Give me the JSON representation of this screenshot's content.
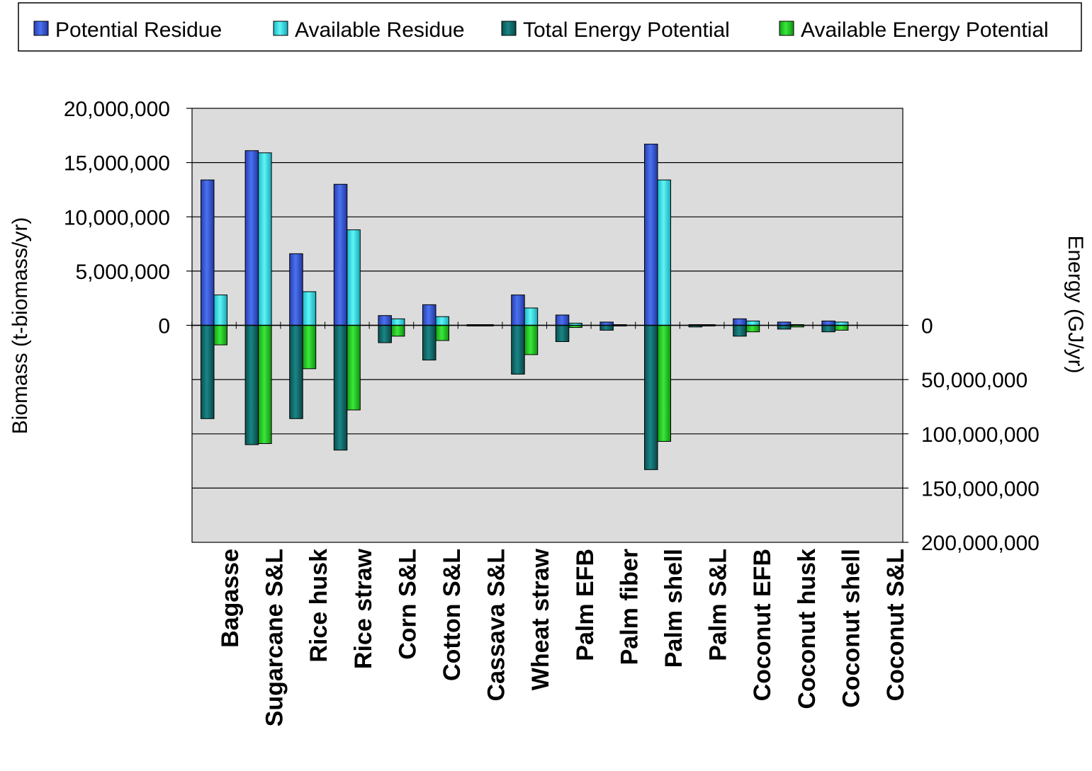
{
  "chart_data": {
    "type": "bar",
    "categories": [
      "Bagasse",
      "Sugarcane S&L",
      "Rice husk",
      "Rice straw",
      "Corn S&L",
      "Cotton S&L",
      "Cassava S&L",
      "Wheat straw",
      "Palm EFB",
      "Palm fiber",
      "Palm shell",
      "Palm S&L",
      "Coconut EFB",
      "Coconut husk",
      "Coconut shell",
      "Coconut S&L"
    ],
    "series": [
      {
        "name": "Potential Residue",
        "axis": "left",
        "color": "#3d5ed6",
        "values": [
          13400000,
          16100000,
          6600000,
          13000000,
          900000,
          1900000,
          50000,
          2800000,
          950000,
          300000,
          16700000,
          80000,
          600000,
          300000,
          400000,
          null
        ]
      },
      {
        "name": "Available Residue",
        "axis": "left",
        "color": "#33e0e0",
        "values": [
          2800000,
          15900000,
          3100000,
          8800000,
          600000,
          800000,
          50000,
          1600000,
          200000,
          80000,
          13400000,
          50000,
          400000,
          100000,
          300000,
          null
        ]
      },
      {
        "name": "Total Energy Potential",
        "axis": "right",
        "color": "#0f7070",
        "values": [
          86000000,
          110000000,
          86000000,
          115000000,
          16000000,
          32000000,
          500000,
          45000000,
          15000000,
          4500000,
          133000000,
          1500000,
          10000000,
          3500000,
          6000000,
          null
        ]
      },
      {
        "name": "Available Energy Potential",
        "axis": "right",
        "color": "#22cc22",
        "values": [
          18000000,
          109000000,
          40000000,
          78000000,
          10000000,
          14000000,
          500000,
          27000000,
          2000000,
          1000000,
          107000000,
          500000,
          6000000,
          1500000,
          4500000,
          null
        ]
      }
    ],
    "left_axis": {
      "label": "Biomass (t-biomass/yr)",
      "ylim": [
        -20000000,
        20000000
      ],
      "ticks": [
        {
          "value": 20000000,
          "label": "20,000,000"
        },
        {
          "value": 15000000,
          "label": "15,000,000"
        },
        {
          "value": 10000000,
          "label": "10,000,000"
        },
        {
          "value": 5000000,
          "label": "5,000,000"
        },
        {
          "value": 0,
          "label": "0"
        }
      ]
    },
    "right_axis": {
      "label": "Energy (GJ/yr)",
      "ylim": [
        200000000,
        -200000000
      ],
      "inverted": true,
      "ticks": [
        {
          "value": 0,
          "label": "0"
        },
        {
          "value": 50000000,
          "label": "50,000,000"
        },
        {
          "value": 100000000,
          "label": "100,000,000"
        },
        {
          "value": 150000000,
          "label": "150,000,000"
        },
        {
          "value": 200000000,
          "label": "200,000,000"
        }
      ]
    },
    "grid": true,
    "legend": "top",
    "background": "#dcdcdc"
  }
}
